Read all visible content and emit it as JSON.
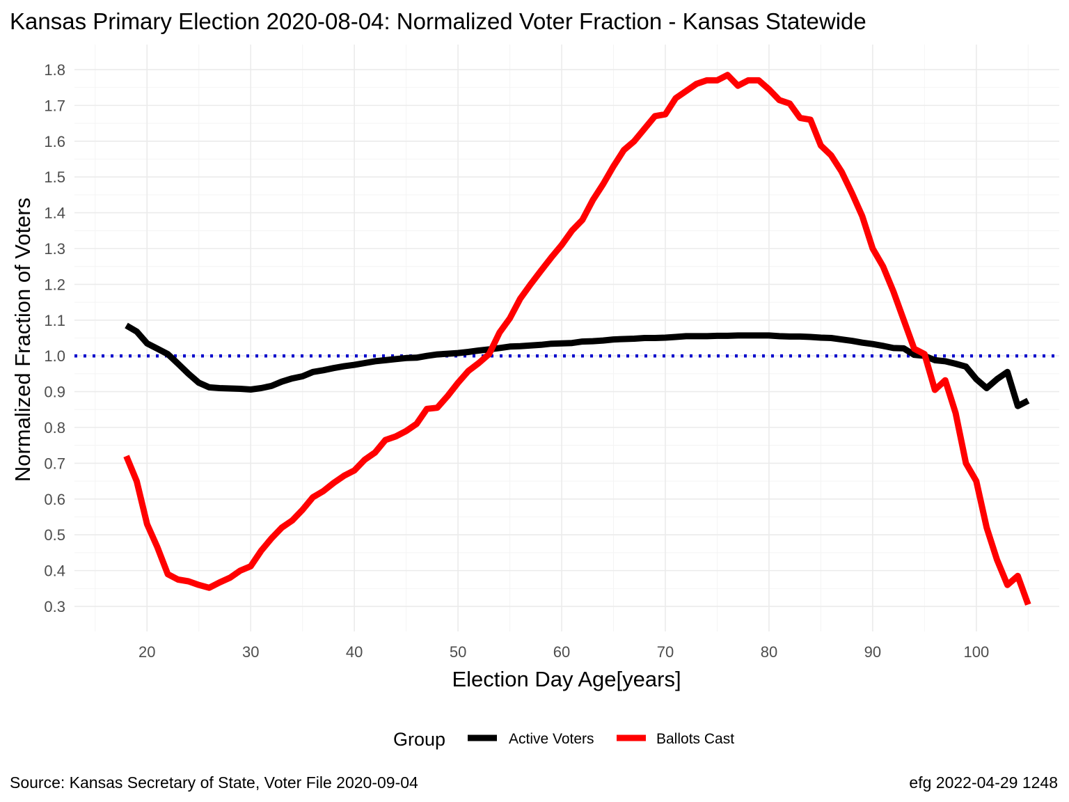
{
  "chart_data": {
    "type": "line",
    "title": "Kansas Primary Election 2020-08-04:  Normalized Voter Fraction - Kansas Statewide",
    "xlabel": "Election Day Age[years]",
    "ylabel": "Normalized Fraction of Voters",
    "xlim": [
      13,
      108
    ],
    "ylim": [
      0.23,
      1.87
    ],
    "x_ticks": [
      20,
      30,
      40,
      50,
      60,
      70,
      80,
      90,
      100
    ],
    "y_ticks": [
      0.3,
      0.4,
      0.5,
      0.6,
      0.7,
      0.8,
      0.9,
      1.0,
      1.1,
      1.2,
      1.3,
      1.4,
      1.5,
      1.6,
      1.7,
      1.8
    ],
    "grid": true,
    "reference_line": {
      "y": 1.0,
      "style": "dotted",
      "color": "#0000cc"
    },
    "legend": {
      "title": "Group",
      "position": "bottom"
    },
    "caption_left": "Source:  Kansas Secretary of State, Voter File  2020-09-04",
    "caption_right": "efg 2022-04-29 1248",
    "x": [
      18,
      19,
      20,
      21,
      22,
      23,
      24,
      25,
      26,
      27,
      28,
      29,
      30,
      31,
      32,
      33,
      34,
      35,
      36,
      37,
      38,
      39,
      40,
      41,
      42,
      43,
      44,
      45,
      46,
      47,
      48,
      49,
      50,
      51,
      52,
      53,
      54,
      55,
      56,
      57,
      58,
      59,
      60,
      61,
      62,
      63,
      64,
      65,
      66,
      67,
      68,
      69,
      70,
      71,
      72,
      73,
      74,
      75,
      76,
      77,
      78,
      79,
      80,
      81,
      82,
      83,
      84,
      85,
      86,
      87,
      88,
      89,
      90,
      91,
      92,
      93,
      94,
      95,
      96,
      97,
      98,
      99,
      100,
      101,
      102,
      103,
      104,
      105
    ],
    "series": [
      {
        "name": "Active Voters",
        "color": "#000000",
        "values": [
          1.085,
          1.068,
          1.035,
          1.02,
          1.005,
          0.978,
          0.95,
          0.925,
          0.912,
          0.91,
          0.909,
          0.908,
          0.906,
          0.91,
          0.916,
          0.928,
          0.937,
          0.943,
          0.955,
          0.96,
          0.966,
          0.971,
          0.975,
          0.98,
          0.985,
          0.988,
          0.991,
          0.994,
          0.995,
          1.0,
          1.004,
          1.006,
          1.008,
          1.011,
          1.015,
          1.018,
          1.022,
          1.026,
          1.027,
          1.029,
          1.031,
          1.034,
          1.035,
          1.036,
          1.04,
          1.041,
          1.043,
          1.046,
          1.047,
          1.048,
          1.05,
          1.05,
          1.051,
          1.053,
          1.055,
          1.055,
          1.055,
          1.056,
          1.056,
          1.057,
          1.057,
          1.057,
          1.057,
          1.055,
          1.054,
          1.054,
          1.053,
          1.051,
          1.05,
          1.046,
          1.042,
          1.037,
          1.033,
          1.028,
          1.022,
          1.021,
          1.003,
          1.0,
          0.988,
          0.985,
          0.978,
          0.97,
          0.935,
          0.91,
          0.935,
          0.955,
          0.86,
          0.875
        ]
      },
      {
        "name": "Ballots Cast",
        "color": "#ff0000",
        "values": [
          0.72,
          0.65,
          0.53,
          0.465,
          0.39,
          0.375,
          0.37,
          0.36,
          0.352,
          0.367,
          0.38,
          0.4,
          0.412,
          0.455,
          0.49,
          0.52,
          0.54,
          0.57,
          0.605,
          0.622,
          0.645,
          0.665,
          0.68,
          0.71,
          0.73,
          0.765,
          0.775,
          0.79,
          0.81,
          0.852,
          0.855,
          0.888,
          0.925,
          0.958,
          0.98,
          1.005,
          1.065,
          1.105,
          1.16,
          1.2,
          1.238,
          1.275,
          1.31,
          1.35,
          1.38,
          1.435,
          1.48,
          1.53,
          1.575,
          1.6,
          1.635,
          1.67,
          1.675,
          1.72,
          1.74,
          1.76,
          1.77,
          1.77,
          1.785,
          1.755,
          1.77,
          1.77,
          1.745,
          1.715,
          1.705,
          1.665,
          1.66,
          1.588,
          1.56,
          1.515,
          1.455,
          1.39,
          1.3,
          1.25,
          1.18,
          1.1,
          1.02,
          1.005,
          0.905,
          0.932,
          0.84,
          0.7,
          0.65,
          0.52,
          0.43,
          0.36,
          0.385,
          0.305
        ]
      }
    ]
  }
}
